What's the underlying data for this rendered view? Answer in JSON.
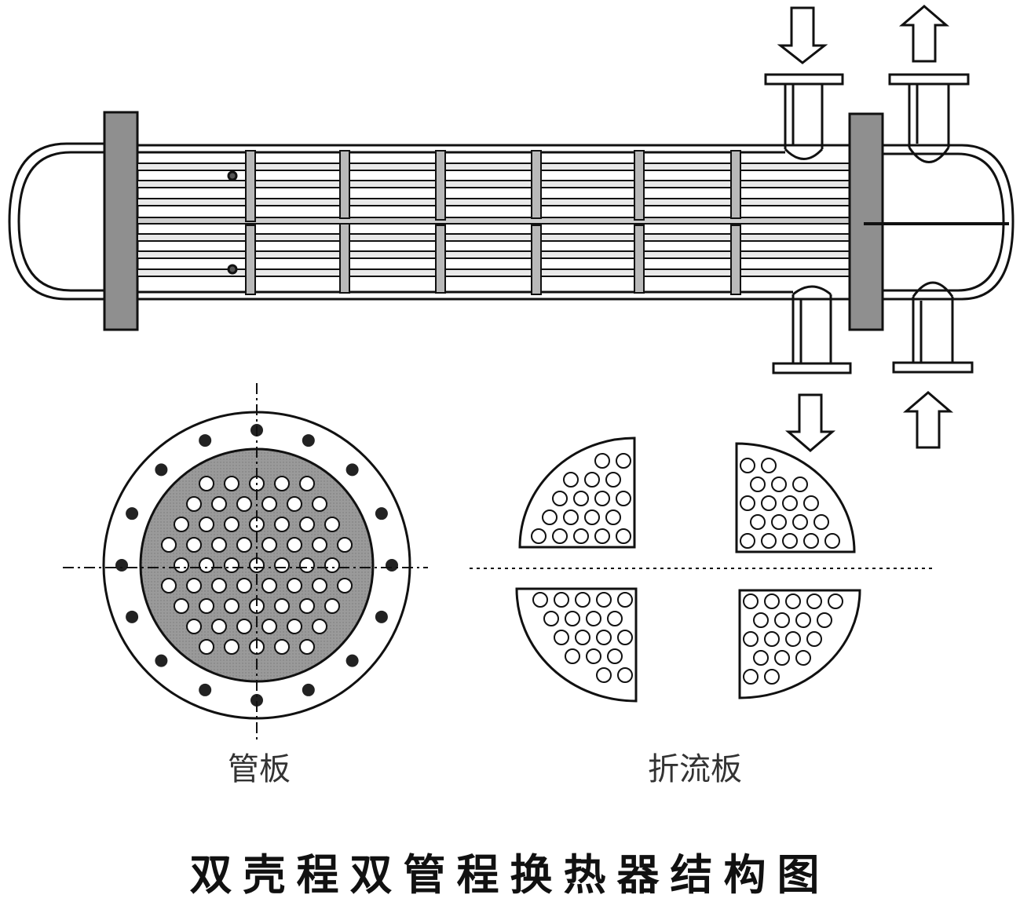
{
  "labels": {
    "tube_sheet": "管板",
    "baffle": "折流板"
  },
  "title": "双壳程双管程换热器结构图",
  "colors": {
    "line": "#111111",
    "fill_gray": "#9a9a9a",
    "rod_gray": "#b9b9b9",
    "background": "#ffffff"
  },
  "icons": [
    "flow-arrow-down-icon",
    "flow-arrow-up-icon"
  ]
}
